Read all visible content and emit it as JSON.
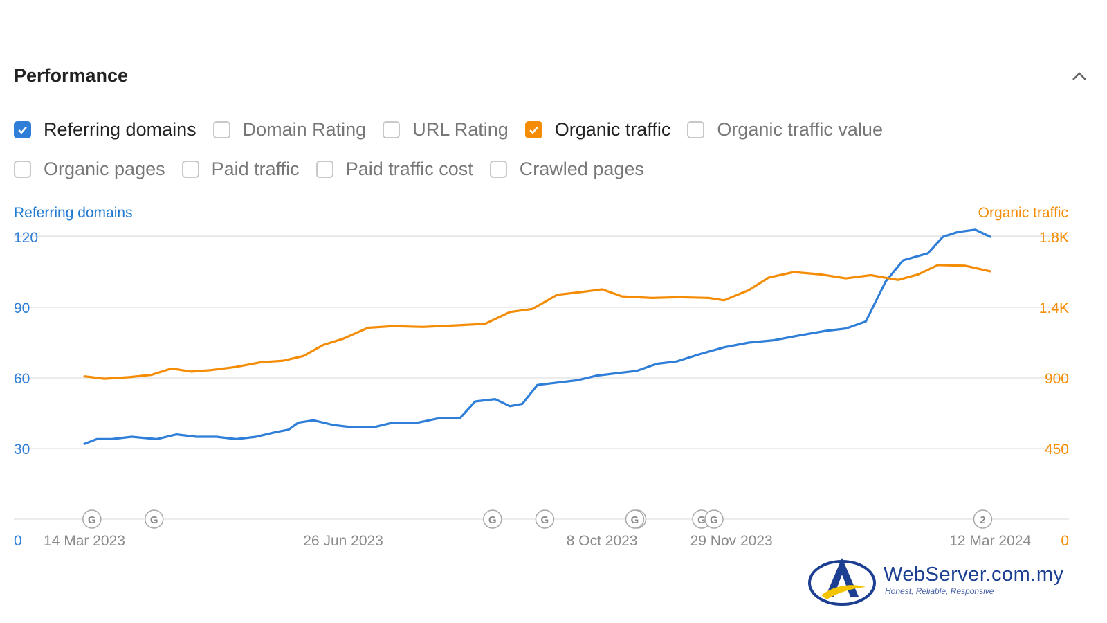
{
  "panel": {
    "title": "Performance",
    "collapse_icon": "chevron-up-icon"
  },
  "metrics_row1": [
    {
      "label": "Referring domains",
      "checked": true,
      "color": "#2f7ed8"
    },
    {
      "label": "Domain Rating",
      "checked": false
    },
    {
      "label": "URL Rating",
      "checked": false
    },
    {
      "label": "Organic traffic",
      "checked": true,
      "color": "#f48c06"
    },
    {
      "label": "Organic traffic value",
      "checked": false
    }
  ],
  "metrics_row2": [
    {
      "label": "Organic pages",
      "checked": false
    },
    {
      "label": "Paid traffic",
      "checked": false
    },
    {
      "label": "Paid traffic cost",
      "checked": false
    },
    {
      "label": "Crawled pages",
      "checked": false
    }
  ],
  "colors": {
    "referring_domains": "#2f7ed8",
    "organic_traffic": "#f48c06",
    "grid": "#e6e6e6"
  },
  "chart_data": {
    "type": "line",
    "left_axis": {
      "title": "Referring domains",
      "ticks": [
        "0",
        "30",
        "60",
        "90",
        "120"
      ],
      "range": [
        0,
        120
      ]
    },
    "right_axis": {
      "title": "Organic traffic",
      "ticks": [
        "0",
        "450",
        "900",
        "1.4K",
        "1.8K"
      ],
      "range": [
        0,
        1800
      ]
    },
    "x_range": [
      "2023-03-14",
      "2024-03-15"
    ],
    "x_ticks": [
      "14 Mar 2023",
      "26 Jun 2023",
      "8 Oct 2023",
      "29 Nov 2023",
      "12 Mar 2024"
    ],
    "x_tick_dates": [
      "2023-03-14",
      "2023-06-26",
      "2023-10-08",
      "2023-11-29",
      "2024-03-12"
    ],
    "grid": true,
    "series": [
      {
        "name": "Referring domains",
        "axis": "left",
        "color": "#2f7ed8",
        "points": [
          [
            "2023-03-14",
            32
          ],
          [
            "2023-03-19",
            34
          ],
          [
            "2023-03-25",
            34
          ],
          [
            "2023-04-02",
            35
          ],
          [
            "2023-04-12",
            34
          ],
          [
            "2023-04-20",
            36
          ],
          [
            "2023-04-28",
            35
          ],
          [
            "2023-05-06",
            35
          ],
          [
            "2023-05-14",
            34
          ],
          [
            "2023-05-22",
            35
          ],
          [
            "2023-05-30",
            37
          ],
          [
            "2023-06-04",
            38
          ],
          [
            "2023-06-08",
            41
          ],
          [
            "2023-06-14",
            42
          ],
          [
            "2023-06-22",
            40
          ],
          [
            "2023-06-30",
            39
          ],
          [
            "2023-07-08",
            39
          ],
          [
            "2023-07-16",
            41
          ],
          [
            "2023-07-26",
            41
          ],
          [
            "2023-08-04",
            43
          ],
          [
            "2023-08-12",
            43
          ],
          [
            "2023-08-18",
            50
          ],
          [
            "2023-08-26",
            51
          ],
          [
            "2023-09-01",
            48
          ],
          [
            "2023-09-06",
            49
          ],
          [
            "2023-09-12",
            57
          ],
          [
            "2023-09-20",
            58
          ],
          [
            "2023-09-28",
            59
          ],
          [
            "2023-10-06",
            61
          ],
          [
            "2023-10-14",
            62
          ],
          [
            "2023-10-22",
            63
          ],
          [
            "2023-10-30",
            66
          ],
          [
            "2023-11-07",
            67
          ],
          [
            "2023-11-16",
            70
          ],
          [
            "2023-11-26",
            73
          ],
          [
            "2023-12-06",
            75
          ],
          [
            "2023-12-16",
            76
          ],
          [
            "2023-12-26",
            78
          ],
          [
            "2024-01-06",
            80
          ],
          [
            "2024-01-14",
            81
          ],
          [
            "2024-01-22",
            84
          ],
          [
            "2024-01-30",
            101
          ],
          [
            "2024-02-06",
            110
          ],
          [
            "2024-02-16",
            113
          ],
          [
            "2024-02-22",
            120
          ],
          [
            "2024-02-28",
            122
          ],
          [
            "2024-03-06",
            123
          ],
          [
            "2024-03-12",
            120
          ]
        ]
      },
      {
        "name": "Organic traffic",
        "axis": "right",
        "color": "#f48c06",
        "points": [
          [
            "2023-03-14",
            910
          ],
          [
            "2023-03-22",
            895
          ],
          [
            "2023-04-01",
            905
          ],
          [
            "2023-04-10",
            920
          ],
          [
            "2023-04-18",
            960
          ],
          [
            "2023-04-26",
            940
          ],
          [
            "2023-05-04",
            950
          ],
          [
            "2023-05-14",
            970
          ],
          [
            "2023-05-24",
            1000
          ],
          [
            "2023-06-02",
            1010
          ],
          [
            "2023-06-10",
            1040
          ],
          [
            "2023-06-18",
            1110
          ],
          [
            "2023-06-26",
            1150
          ],
          [
            "2023-07-06",
            1220
          ],
          [
            "2023-07-16",
            1230
          ],
          [
            "2023-07-28",
            1225
          ],
          [
            "2023-08-10",
            1235
          ],
          [
            "2023-08-22",
            1245
          ],
          [
            "2023-09-01",
            1320
          ],
          [
            "2023-09-10",
            1340
          ],
          [
            "2023-09-20",
            1430
          ],
          [
            "2023-10-01",
            1450
          ],
          [
            "2023-10-08",
            1465
          ],
          [
            "2023-10-16",
            1420
          ],
          [
            "2023-10-28",
            1410
          ],
          [
            "2023-11-08",
            1415
          ],
          [
            "2023-11-20",
            1410
          ],
          [
            "2023-11-26",
            1395
          ],
          [
            "2023-12-06",
            1460
          ],
          [
            "2023-12-14",
            1540
          ],
          [
            "2023-12-24",
            1575
          ],
          [
            "2024-01-04",
            1560
          ],
          [
            "2024-01-14",
            1535
          ],
          [
            "2024-01-24",
            1555
          ],
          [
            "2024-02-04",
            1525
          ],
          [
            "2024-02-12",
            1560
          ],
          [
            "2024-02-20",
            1620
          ],
          [
            "2024-03-02",
            1615
          ],
          [
            "2024-03-12",
            1580
          ]
        ]
      }
    ],
    "annotations": [
      {
        "date": "2023-03-17",
        "label": "G"
      },
      {
        "date": "2023-04-11",
        "label": "G"
      },
      {
        "date": "2023-08-25",
        "label": "G"
      },
      {
        "date": "2023-09-15",
        "label": "G"
      },
      {
        "date": "2023-10-22",
        "label": "G"
      },
      {
        "date": "2023-10-22",
        "label": "G"
      },
      {
        "date": "2023-11-17",
        "label": "G"
      },
      {
        "date": "2023-11-22",
        "label": "G"
      },
      {
        "date": "2024-03-09",
        "label": "2"
      }
    ]
  },
  "logo": {
    "name": "WebServer.com.my",
    "tagline": "Honest, Reliable, Responsive"
  }
}
